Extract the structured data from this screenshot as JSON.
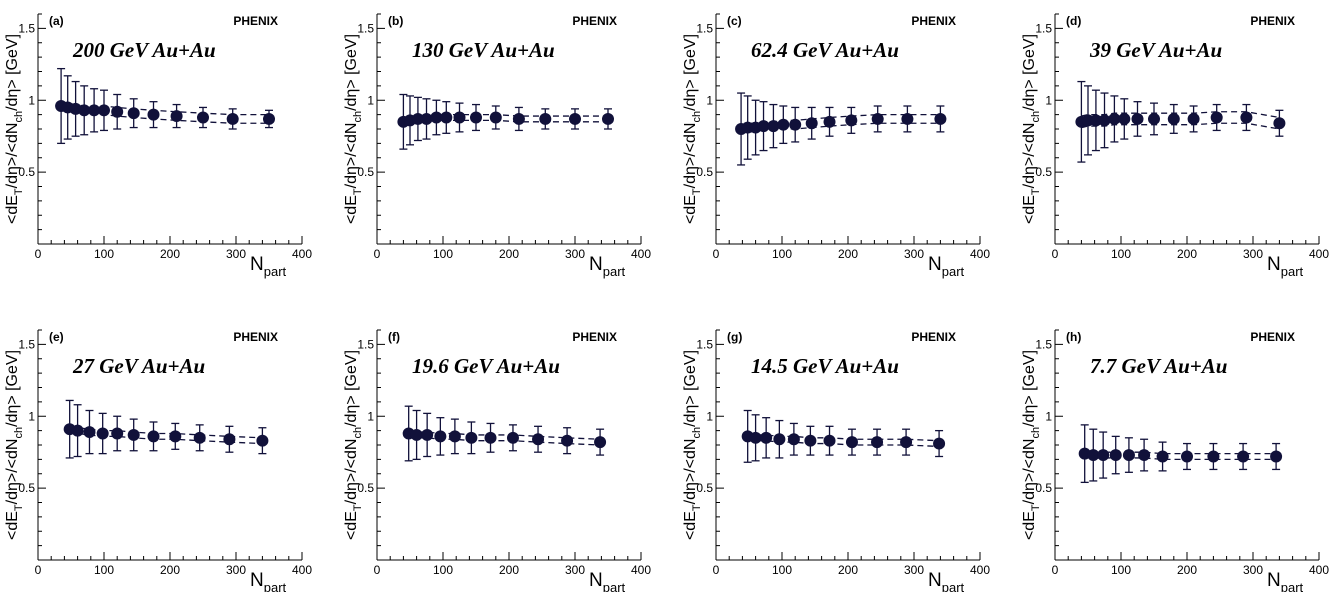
{
  "chart_data": [
    {
      "type": "scatter",
      "panel": "(a)",
      "experiment": "PHENIX",
      "system": "200 GeV Au+Au",
      "xlabel_main": "N",
      "xlabel_sub": "part",
      "ylabel": "<dE_{T}/dη>/<dN_{ch}/dη> [GeV]",
      "ylabel_parts": [
        "<dE",
        "T",
        "/dη>/<dN",
        "ch",
        "/dη> [GeV]"
      ],
      "xlim": [
        0,
        400
      ],
      "ylim": [
        0,
        1.6
      ],
      "xticks": [
        0,
        100,
        200,
        300,
        400
      ],
      "yticks": [
        0.5,
        1,
        1.5
      ],
      "yticklabels": [
        "0.5",
        "1",
        "1.5"
      ],
      "x": [
        35,
        45,
        57,
        70,
        85,
        100,
        120,
        145,
        175,
        210,
        250,
        295,
        350
      ],
      "y": [
        0.96,
        0.95,
        0.94,
        0.93,
        0.93,
        0.93,
        0.92,
        0.91,
        0.9,
        0.89,
        0.88,
        0.87,
        0.87
      ],
      "yerr": [
        0.26,
        0.22,
        0.19,
        0.17,
        0.15,
        0.14,
        0.12,
        0.1,
        0.09,
        0.08,
        0.07,
        0.07,
        0.06
      ],
      "band_halfwidth": 0.03
    },
    {
      "type": "scatter",
      "panel": "(b)",
      "experiment": "PHENIX",
      "system": "130 GeV Au+Au",
      "xlabel_main": "N",
      "xlabel_sub": "part",
      "ylabel": "<dE_{T}/dη>/<dN_{ch}/dη> [GeV]",
      "ylabel_parts": [
        "<dE",
        "T",
        "/dη>/<dN",
        "ch",
        "/dη> [GeV]"
      ],
      "xlim": [
        0,
        400
      ],
      "ylim": [
        0,
        1.6
      ],
      "xticks": [
        0,
        100,
        200,
        300,
        400
      ],
      "yticks": [
        0.5,
        1,
        1.5
      ],
      "yticklabels": [
        "0.5",
        "1",
        "1.5"
      ],
      "x": [
        40,
        50,
        62,
        75,
        90,
        105,
        125,
        150,
        180,
        215,
        255,
        300,
        350
      ],
      "y": [
        0.85,
        0.86,
        0.87,
        0.87,
        0.88,
        0.88,
        0.88,
        0.88,
        0.88,
        0.87,
        0.87,
        0.87,
        0.87
      ],
      "yerr": [
        0.19,
        0.17,
        0.15,
        0.14,
        0.12,
        0.11,
        0.1,
        0.09,
        0.08,
        0.08,
        0.07,
        0.07,
        0.07
      ],
      "band_halfwidth": 0.02
    },
    {
      "type": "scatter",
      "panel": "(c)",
      "experiment": "PHENIX",
      "system": "62.4 GeV Au+Au",
      "xlabel_main": "N",
      "xlabel_sub": "part",
      "ylabel": "<dE_{T}/dη>/<dN_{ch}/dη> [GeV]",
      "ylabel_parts": [
        "<dE",
        "T",
        "/dη>/<dN",
        "ch",
        "/dη> [GeV]"
      ],
      "xlim": [
        0,
        400
      ],
      "ylim": [
        0,
        1.6
      ],
      "xticks": [
        0,
        100,
        200,
        300,
        400
      ],
      "yticks": [
        0.5,
        1,
        1.5
      ],
      "yticklabels": [
        "0.5",
        "1",
        "1.5"
      ],
      "x": [
        38,
        48,
        60,
        72,
        87,
        102,
        120,
        145,
        172,
        205,
        245,
        290,
        340
      ],
      "y": [
        0.8,
        0.81,
        0.81,
        0.82,
        0.82,
        0.83,
        0.83,
        0.84,
        0.85,
        0.86,
        0.87,
        0.87,
        0.87
      ],
      "yerr": [
        0.25,
        0.22,
        0.19,
        0.17,
        0.15,
        0.13,
        0.12,
        0.11,
        0.1,
        0.09,
        0.09,
        0.09,
        0.09
      ],
      "band_halfwidth": 0.03
    },
    {
      "type": "scatter",
      "panel": "(d)",
      "experiment": "PHENIX",
      "system": "39 GeV Au+Au",
      "xlabel_main": "N",
      "xlabel_sub": "part",
      "ylabel": "<dE_{T}/dη>/<dN_{ch}/dη> [GeV]",
      "ylabel_parts": [
        "<dE",
        "T",
        "/dη>/<dN",
        "ch",
        "/dη> [GeV]"
      ],
      "xlim": [
        0,
        400
      ],
      "ylim": [
        0,
        1.6
      ],
      "xticks": [
        0,
        100,
        200,
        300,
        400
      ],
      "yticks": [
        0.5,
        1,
        1.5
      ],
      "yticklabels": [
        "0.5",
        "1",
        "1.5"
      ],
      "x": [
        40,
        50,
        62,
        75,
        90,
        105,
        125,
        150,
        180,
        210,
        245,
        290,
        340
      ],
      "y": [
        0.85,
        0.86,
        0.86,
        0.86,
        0.87,
        0.87,
        0.87,
        0.87,
        0.87,
        0.87,
        0.88,
        0.88,
        0.84
      ],
      "yerr": [
        0.28,
        0.24,
        0.21,
        0.19,
        0.16,
        0.14,
        0.12,
        0.11,
        0.1,
        0.09,
        0.09,
        0.09,
        0.09
      ],
      "band_halfwidth": 0.04
    },
    {
      "type": "scatter",
      "panel": "(e)",
      "experiment": "PHENIX",
      "system": "27 GeV Au+Au",
      "xlabel_main": "N",
      "xlabel_sub": "part",
      "ylabel": "<dE_{T}/dη>/<dN_{ch}/dη> [GeV]",
      "ylabel_parts": [
        "<dE",
        "T",
        "/dη>/<dN",
        "ch",
        "/dη> [GeV]"
      ],
      "xlim": [
        0,
        400
      ],
      "ylim": [
        0,
        1.6
      ],
      "xticks": [
        0,
        100,
        200,
        300,
        400
      ],
      "yticks": [
        0.5,
        1,
        1.5
      ],
      "yticklabels": [
        "0.5",
        "1",
        "1.5"
      ],
      "x": [
        48,
        60,
        78,
        98,
        120,
        145,
        175,
        208,
        245,
        290,
        340
      ],
      "y": [
        0.91,
        0.9,
        0.89,
        0.88,
        0.88,
        0.87,
        0.86,
        0.86,
        0.85,
        0.84,
        0.83
      ],
      "yerr": [
        0.2,
        0.18,
        0.15,
        0.14,
        0.12,
        0.11,
        0.1,
        0.09,
        0.09,
        0.09,
        0.09
      ],
      "band_halfwidth": 0.02
    },
    {
      "type": "scatter",
      "panel": "(f)",
      "experiment": "PHENIX",
      "system": "19.6 GeV Au+Au",
      "xlabel_main": "N",
      "xlabel_sub": "part",
      "ylabel": "<dE_{T}/dη>/<dN_{ch}/dη> [GeV]",
      "ylabel_parts": [
        "<dE",
        "T",
        "/dη>/<dN",
        "ch",
        "/dη> [GeV]"
      ],
      "xlim": [
        0,
        400
      ],
      "ylim": [
        0,
        1.6
      ],
      "xticks": [
        0,
        100,
        200,
        300,
        400
      ],
      "yticks": [
        0.5,
        1,
        1.5
      ],
      "yticklabels": [
        "0.5",
        "1",
        "1.5"
      ],
      "x": [
        48,
        60,
        76,
        96,
        118,
        143,
        172,
        206,
        244,
        288,
        338
      ],
      "y": [
        0.88,
        0.87,
        0.87,
        0.86,
        0.86,
        0.85,
        0.85,
        0.85,
        0.84,
        0.83,
        0.82
      ],
      "yerr": [
        0.19,
        0.17,
        0.15,
        0.13,
        0.12,
        0.11,
        0.1,
        0.09,
        0.09,
        0.09,
        0.09
      ],
      "band_halfwidth": 0.02
    },
    {
      "type": "scatter",
      "panel": "(g)",
      "experiment": "PHENIX",
      "system": "14.5 GeV Au+Au",
      "xlabel_main": "N",
      "xlabel_sub": "part",
      "ylabel": "<dE_{T}/dη>/<dN_{ch}/dη> [GeV]",
      "ylabel_parts": [
        "<dE",
        "T",
        "/dη>/<dN",
        "ch",
        "/dη> [GeV]"
      ],
      "xlim": [
        0,
        400
      ],
      "ylim": [
        0,
        1.6
      ],
      "xticks": [
        0,
        100,
        200,
        300,
        400
      ],
      "yticks": [
        0.5,
        1,
        1.5
      ],
      "yticklabels": [
        "0.5",
        "1",
        "1.5"
      ],
      "x": [
        48,
        60,
        76,
        96,
        118,
        143,
        172,
        206,
        244,
        288,
        338
      ],
      "y": [
        0.86,
        0.85,
        0.85,
        0.84,
        0.84,
        0.83,
        0.83,
        0.82,
        0.82,
        0.82,
        0.81
      ],
      "yerr": [
        0.18,
        0.16,
        0.14,
        0.13,
        0.11,
        0.1,
        0.1,
        0.09,
        0.09,
        0.09,
        0.09
      ],
      "band_halfwidth": 0.02
    },
    {
      "type": "scatter",
      "panel": "(h)",
      "experiment": "PHENIX",
      "system": "7.7 GeV Au+Au",
      "xlabel_main": "N",
      "xlabel_sub": "part",
      "ylabel": "<dE_{T}/dη>/<dN_{ch}/dη> [GeV]",
      "ylabel_parts": [
        "<dE",
        "T",
        "/dη>/<dN",
        "ch",
        "/dη> [GeV]"
      ],
      "xlim": [
        0,
        400
      ],
      "ylim": [
        0,
        1.6
      ],
      "xticks": [
        0,
        100,
        200,
        300,
        400
      ],
      "yticks": [
        0.5,
        1,
        1.5
      ],
      "yticklabels": [
        "0.5",
        "1",
        "1.5"
      ],
      "x": [
        45,
        58,
        73,
        92,
        112,
        135,
        163,
        200,
        240,
        285,
        335
      ],
      "y": [
        0.74,
        0.73,
        0.73,
        0.73,
        0.73,
        0.73,
        0.72,
        0.72,
        0.72,
        0.72,
        0.72
      ],
      "yerr": [
        0.2,
        0.18,
        0.16,
        0.13,
        0.12,
        0.11,
        0.1,
        0.09,
        0.09,
        0.09,
        0.09
      ],
      "band_halfwidth": 0.02
    }
  ]
}
